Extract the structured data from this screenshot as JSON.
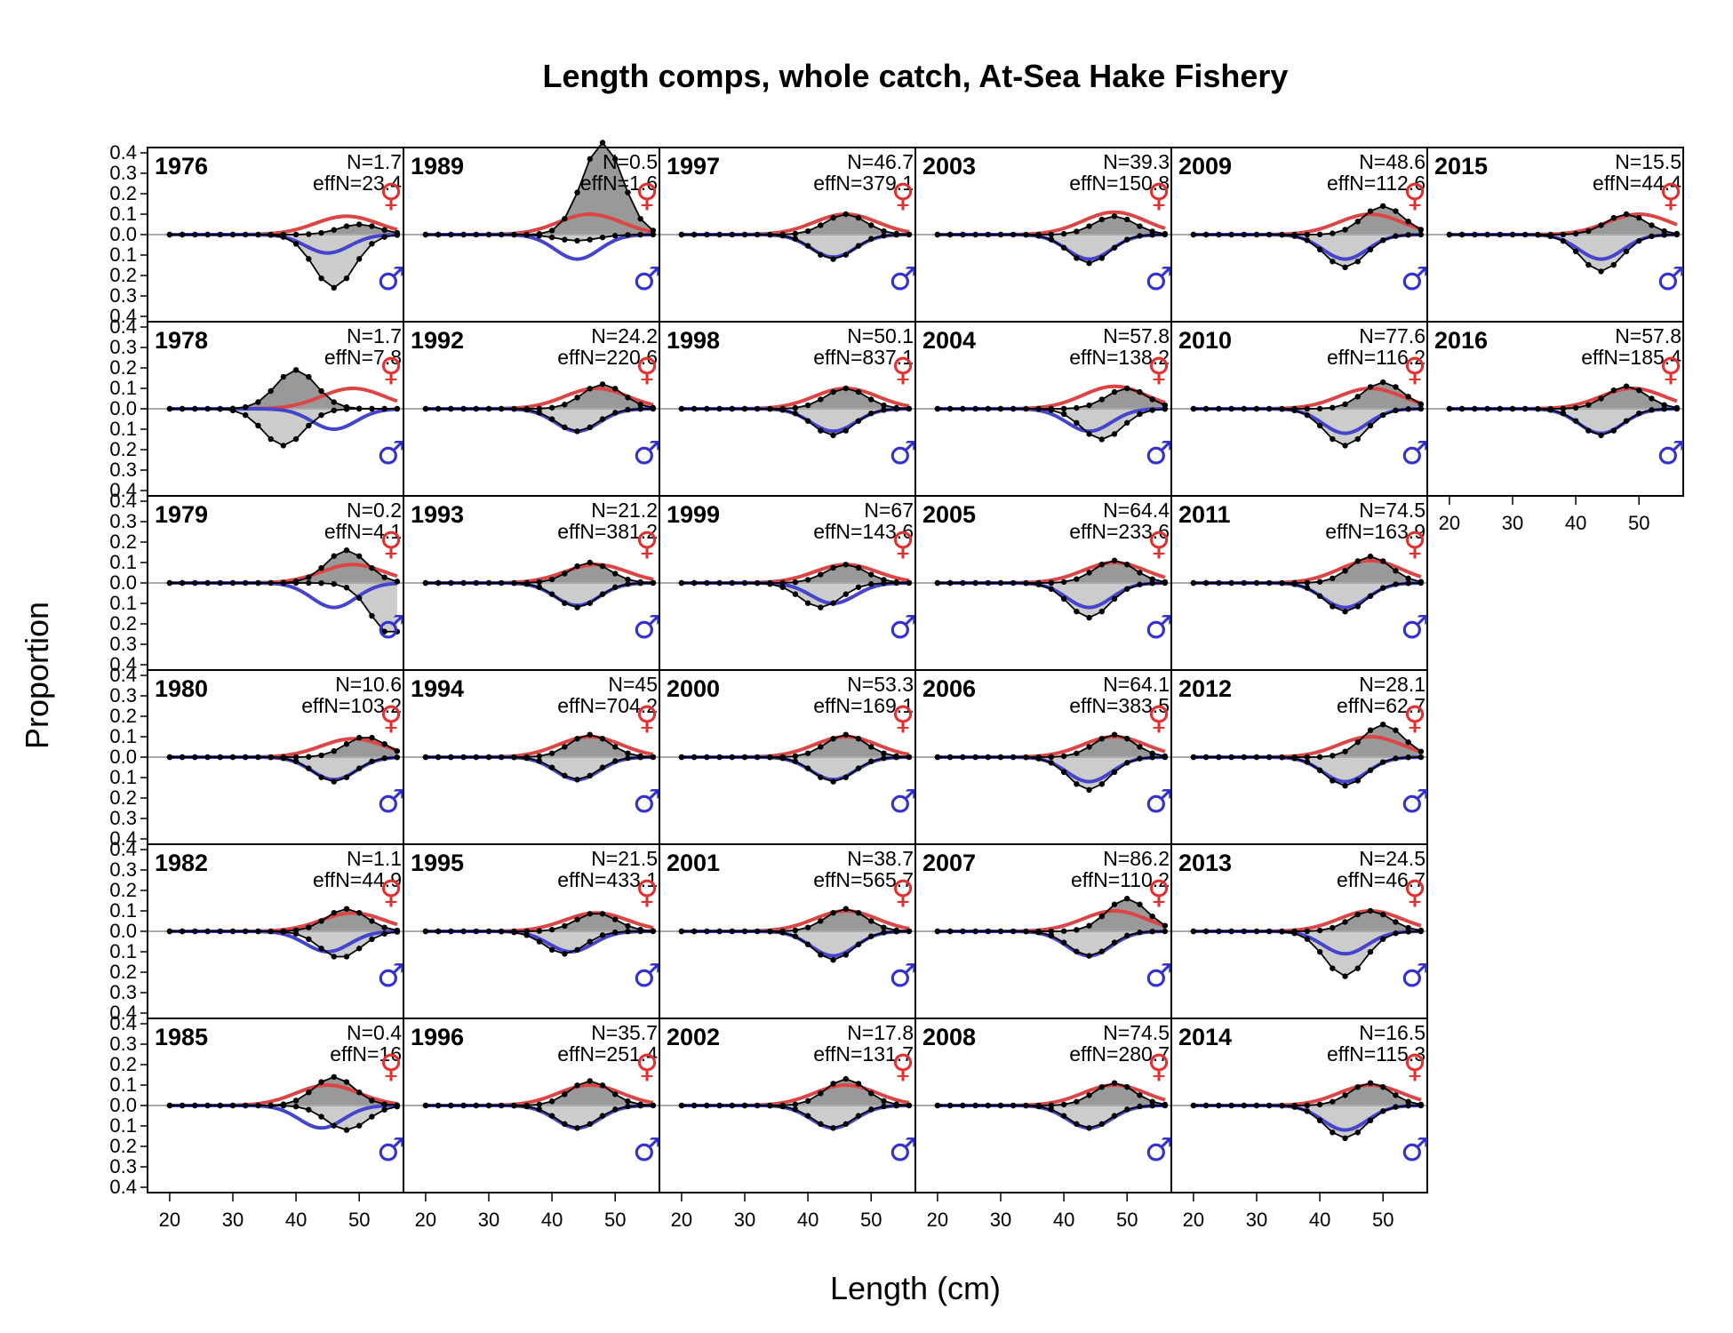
{
  "title": "Length comps, whole catch, At-Sea Hake Fishery",
  "x_axis_title": "Length (cm)",
  "y_axis_title": "Proportion",
  "female_symbol": "♀",
  "male_symbol": "♂",
  "colors": {
    "obs_female_fill": "#999999",
    "obs_male_fill": "#cccccc",
    "expected_female_line": "#dd4444",
    "expected_male_line": "#4444cc",
    "zero_line": "#aaaaaa"
  },
  "chart_data": {
    "type": "area",
    "x_ticks": [
      20,
      30,
      40,
      50
    ],
    "y_ticks": [
      0.4,
      0.3,
      0.2,
      0.1,
      0.0,
      0.1,
      0.2,
      0.3,
      0.4
    ],
    "y_tick_labels": [
      "0.4",
      "0.3",
      "0.2",
      "0.1",
      "0.0",
      "0.1",
      "0.2",
      "0.3",
      "0.4"
    ],
    "xlim": [
      16.5,
      57
    ],
    "ylim": [
      -0.4,
      0.4
    ],
    "panels": [
      {
        "year": "1976",
        "n_label": "N=1.7",
        "effn_label": "effN=23.4",
        "fpk": 50,
        "fsh": 0.05,
        "fe": 48,
        "fee": 0.09,
        "mpk": 46,
        "msh": -0.26,
        "me": 45,
        "mee": -0.09
      },
      {
        "year": "1978",
        "n_label": "N=1.7",
        "effn_label": "effN=7.8",
        "fpk": 40,
        "fsh": 0.19,
        "fe": 49,
        "fee": 0.1,
        "mpk": 38,
        "msh": -0.18,
        "me": 46,
        "mee": -0.1
      },
      {
        "year": "1979",
        "n_label": "N=0.2",
        "effn_label": "effN=4.1",
        "fpk": 48,
        "fsh": 0.16,
        "fe": 49,
        "fee": 0.09,
        "mpk": 55,
        "msh": -0.25,
        "me": 46,
        "mee": -0.12
      },
      {
        "year": "1980",
        "n_label": "N=10.6",
        "effn_label": "effN=103.2",
        "fpk": 51,
        "fsh": 0.1,
        "fe": 49,
        "fee": 0.09,
        "mpk": 46,
        "msh": -0.12,
        "me": 46,
        "mee": -0.11
      },
      {
        "year": "1982",
        "n_label": "N=1.1",
        "effn_label": "effN=44.9",
        "fpk": 48,
        "fsh": 0.11,
        "fe": 49,
        "fee": 0.09,
        "mpk": 47,
        "msh": -0.13,
        "me": 45,
        "mee": -0.1
      },
      {
        "year": "1985",
        "n_label": "N=0.4",
        "effn_label": "effN=16",
        "fpk": 46,
        "fsh": 0.14,
        "fe": 45,
        "fee": 0.1,
        "mpk": 48,
        "msh": -0.12,
        "me": 44,
        "mee": -0.11
      },
      {
        "year": "1989",
        "n_label": "N=0.5",
        "effn_label": "effN=1.6",
        "fpk": 48,
        "fsh": 0.45,
        "fe": 46,
        "fee": 0.1,
        "mpk": 44,
        "msh": -0.03,
        "me": 44,
        "mee": -0.12
      },
      {
        "year": "1992",
        "n_label": "N=24.2",
        "effn_label": "effN=220.6",
        "fpk": 48,
        "fsh": 0.12,
        "fe": 47,
        "fee": 0.1,
        "mpk": 44,
        "msh": -0.11,
        "me": 44,
        "mee": -0.11
      },
      {
        "year": "1993",
        "n_label": "N=21.2",
        "effn_label": "effN=381.2",
        "fpk": 46,
        "fsh": 0.1,
        "fe": 47,
        "fee": 0.09,
        "mpk": 44,
        "msh": -0.12,
        "me": 44,
        "mee": -0.11
      },
      {
        "year": "1994",
        "n_label": "N=45",
        "effn_label": "effN=704.2",
        "fpk": 46,
        "fsh": 0.11,
        "fe": 46,
        "fee": 0.1,
        "mpk": 44,
        "msh": -0.11,
        "me": 44,
        "mee": -0.11
      },
      {
        "year": "1995",
        "n_label": "N=21.5",
        "effn_label": "effN=433.1",
        "fpk": 47,
        "fsh": 0.09,
        "fe": 47,
        "fee": 0.09,
        "mpk": 42,
        "msh": -0.11,
        "me": 43,
        "mee": -0.1
      },
      {
        "year": "1996",
        "n_label": "N=35.7",
        "effn_label": "effN=251.4",
        "fpk": 46,
        "fsh": 0.12,
        "fe": 46,
        "fee": 0.1,
        "mpk": 44,
        "msh": -0.11,
        "me": 44,
        "mee": -0.11
      },
      {
        "year": "1997",
        "n_label": "N=46.7",
        "effn_label": "effN=379.1",
        "fpk": 46,
        "fsh": 0.1,
        "fe": 46,
        "fee": 0.1,
        "mpk": 44,
        "msh": -0.12,
        "me": 44,
        "mee": -0.11
      },
      {
        "year": "1998",
        "n_label": "N=50.1",
        "effn_label": "effN=837.1",
        "fpk": 46,
        "fsh": 0.1,
        "fe": 46,
        "fee": 0.1,
        "mpk": 44,
        "msh": -0.13,
        "me": 44,
        "mee": -0.11
      },
      {
        "year": "1999",
        "n_label": "N=67",
        "effn_label": "effN=143.6",
        "fpk": 46,
        "fsh": 0.09,
        "fe": 46,
        "fee": 0.09,
        "mpk": 42,
        "msh": -0.12,
        "me": 44,
        "mee": -0.1
      },
      {
        "year": "2000",
        "n_label": "N=53.3",
        "effn_label": "effN=169.1",
        "fpk": 46,
        "fsh": 0.11,
        "fe": 46,
        "fee": 0.1,
        "mpk": 44,
        "msh": -0.12,
        "me": 44,
        "mee": -0.11
      },
      {
        "year": "2001",
        "n_label": "N=38.7",
        "effn_label": "effN=565.7",
        "fpk": 46,
        "fsh": 0.11,
        "fe": 46,
        "fee": 0.1,
        "mpk": 44,
        "msh": -0.14,
        "me": 44,
        "mee": -0.12
      },
      {
        "year": "2002",
        "n_label": "N=17.8",
        "effn_label": "effN=131.7",
        "fpk": 46,
        "fsh": 0.13,
        "fe": 46,
        "fee": 0.1,
        "mpk": 44,
        "msh": -0.11,
        "me": 44,
        "mee": -0.11
      },
      {
        "year": "2003",
        "n_label": "N=39.3",
        "effn_label": "effN=150.8",
        "fpk": 48,
        "fsh": 0.09,
        "fe": 48,
        "fee": 0.11,
        "mpk": 44,
        "msh": -0.14,
        "me": 44,
        "mee": -0.12
      },
      {
        "year": "2004",
        "n_label": "N=57.8",
        "effn_label": "effN=138.2",
        "fpk": 50,
        "fsh": 0.1,
        "fe": 48,
        "fee": 0.11,
        "mpk": 46,
        "msh": -0.15,
        "me": 44,
        "mee": -0.11
      },
      {
        "year": "2005",
        "n_label": "N=64.4",
        "effn_label": "effN=233.6",
        "fpk": 48,
        "fsh": 0.11,
        "fe": 48,
        "fee": 0.1,
        "mpk": 44,
        "msh": -0.17,
        "me": 44,
        "mee": -0.12
      },
      {
        "year": "2006",
        "n_label": "N=64.1",
        "effn_label": "effN=383.5",
        "fpk": 48,
        "fsh": 0.11,
        "fe": 48,
        "fee": 0.1,
        "mpk": 44,
        "msh": -0.16,
        "me": 44,
        "mee": -0.12
      },
      {
        "year": "2007",
        "n_label": "N=86.2",
        "effn_label": "effN=110.2",
        "fpk": 50,
        "fsh": 0.16,
        "fe": 48,
        "fee": 0.1,
        "mpk": 44,
        "msh": -0.12,
        "me": 44,
        "mee": -0.12
      },
      {
        "year": "2008",
        "n_label": "N=74.5",
        "effn_label": "effN=280.7",
        "fpk": 48,
        "fsh": 0.11,
        "fe": 48,
        "fee": 0.1,
        "mpk": 44,
        "msh": -0.11,
        "me": 44,
        "mee": -0.11
      },
      {
        "year": "2009",
        "n_label": "N=48.6",
        "effn_label": "effN=112.6",
        "fpk": 50,
        "fsh": 0.14,
        "fe": 48,
        "fee": 0.1,
        "mpk": 44,
        "msh": -0.16,
        "me": 44,
        "mee": -0.12
      },
      {
        "year": "2010",
        "n_label": "N=77.6",
        "effn_label": "effN=116.2",
        "fpk": 50,
        "fsh": 0.13,
        "fe": 48,
        "fee": 0.1,
        "mpk": 44,
        "msh": -0.18,
        "me": 44,
        "mee": -0.12
      },
      {
        "year": "2011",
        "n_label": "N=74.5",
        "effn_label": "effN=163.9",
        "fpk": 48,
        "fsh": 0.13,
        "fe": 48,
        "fee": 0.11,
        "mpk": 44,
        "msh": -0.14,
        "me": 44,
        "mee": -0.12
      },
      {
        "year": "2012",
        "n_label": "N=28.1",
        "effn_label": "effN=62.7",
        "fpk": 50,
        "fsh": 0.16,
        "fe": 48,
        "fee": 0.1,
        "mpk": 44,
        "msh": -0.14,
        "me": 44,
        "mee": -0.12
      },
      {
        "year": "2013",
        "n_label": "N=24.5",
        "effn_label": "effN=46.7",
        "fpk": 48,
        "fsh": 0.1,
        "fe": 48,
        "fee": 0.1,
        "mpk": 44,
        "msh": -0.22,
        "me": 44,
        "mee": -0.11
      },
      {
        "year": "2014",
        "n_label": "N=16.5",
        "effn_label": "effN=115.3",
        "fpk": 48,
        "fsh": 0.11,
        "fe": 48,
        "fee": 0.1,
        "mpk": 44,
        "msh": -0.16,
        "me": 44,
        "mee": -0.12
      },
      {
        "year": "2015",
        "n_label": "N=15.5",
        "effn_label": "effN=44.4",
        "fpk": 48,
        "fsh": 0.1,
        "fe": 50,
        "fee": 0.1,
        "mpk": 44,
        "msh": -0.18,
        "me": 44,
        "mee": -0.12
      },
      {
        "year": "2016",
        "n_label": "N=57.8",
        "effn_label": "effN=185.4",
        "fpk": 48,
        "fsh": 0.11,
        "fe": 49,
        "fee": 0.1,
        "mpk": 44,
        "msh": -0.13,
        "me": 44,
        "mee": -0.12
      }
    ]
  }
}
